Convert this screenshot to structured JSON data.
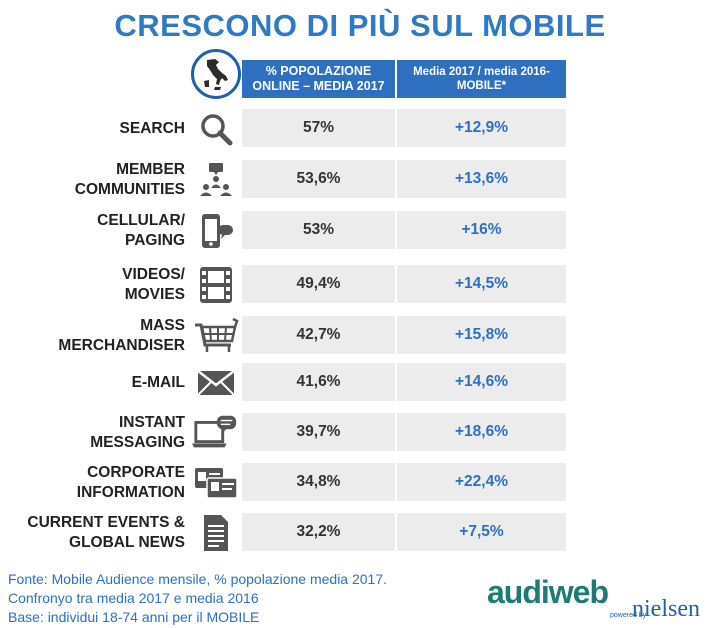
{
  "header": {
    "title": "CRESCONO DI PIÙ SUL MOBILE",
    "col1": "% POPOLAZIONE ONLINE – MEDIA 2017",
    "col2": "Media 2017 / media 2016-MOBILE*"
  },
  "rows": [
    {
      "label": "SEARCH",
      "pop": "57%",
      "growth": "+12,9%",
      "icon": "magnifier-icon"
    },
    {
      "label": "MEMBER COMMUNITIES",
      "pop": "53,6%",
      "growth": "+13,6%",
      "icon": "community-icon"
    },
    {
      "label": "CELLULAR/ PAGING",
      "pop": "53%",
      "growth": "+16%",
      "icon": "phone-icon"
    },
    {
      "label": "VIDEOS/ MOVIES",
      "pop": "49,4%",
      "growth": "+14,5%",
      "icon": "film-icon"
    },
    {
      "label": "MASS MERCHANDISER",
      "pop": "42,7%",
      "growth": "+15,8%",
      "icon": "cart-icon"
    },
    {
      "label": "E-MAIL",
      "pop": "41,6%",
      "growth": "+14,6%",
      "icon": "envelope-icon"
    },
    {
      "label": "INSTANT MESSAGING",
      "pop": "39,7%",
      "growth": "+18,6%",
      "icon": "laptop-chat-icon"
    },
    {
      "label": "CORPORATE INFORMATION",
      "pop": "34,8%",
      "growth": "+22,4%",
      "icon": "id-cards-icon"
    },
    {
      "label": "CURRENT EVENTS & GLOBAL NEWS",
      "pop": "32,2%",
      "growth": "+7,5%",
      "icon": "document-icon"
    }
  ],
  "footnote": {
    "line1": "Fonte: Mobile Audience mensile, % popolazione media 2017.",
    "line2": "Confronyo tra media 2017 e media 2016",
    "line3": "Base: individui 18-74 anni per il MOBILE"
  },
  "logo": {
    "audiweb": "audiweb",
    "powered": "powered by",
    "nielsen": "nielsen"
  },
  "colors": {
    "accent": "#2f7ac4",
    "header_bg": "#2f6fbf",
    "cell_bg": "#ececec",
    "growth_text": "#2f6fbf"
  }
}
